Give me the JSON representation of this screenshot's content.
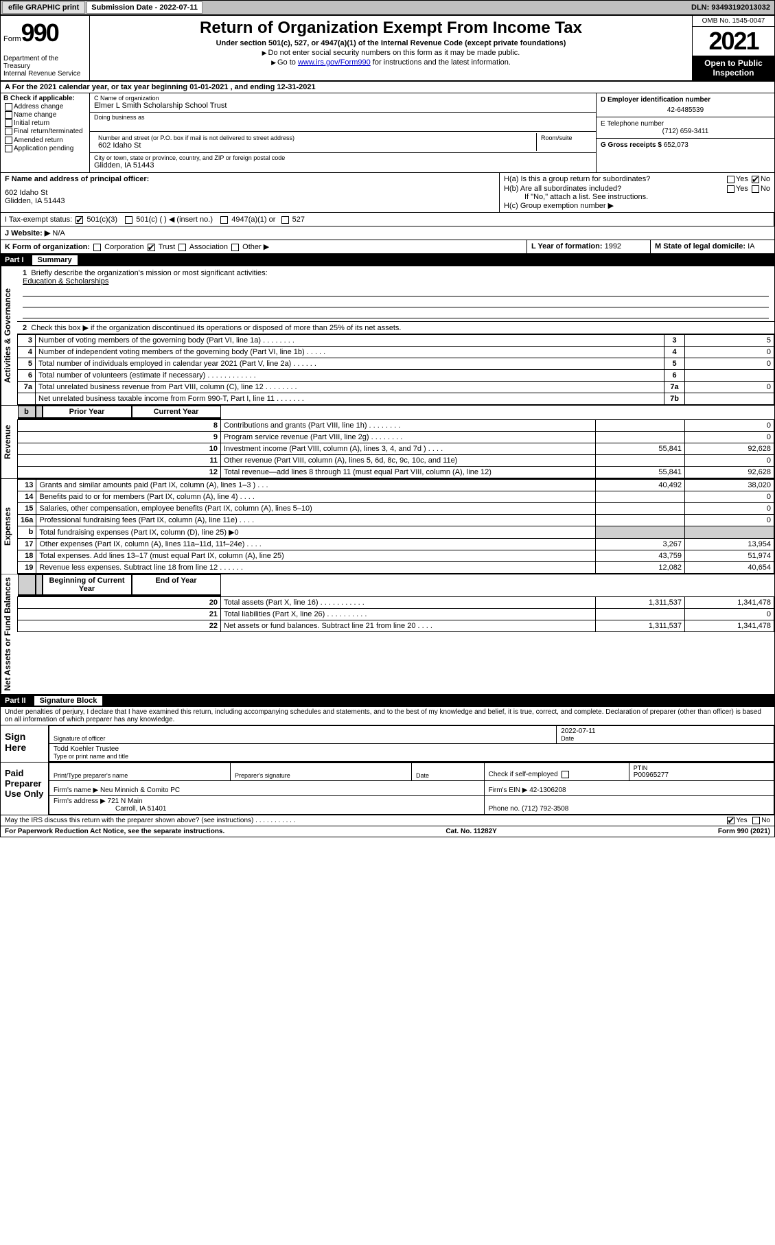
{
  "topbar": {
    "efile": "efile GRAPHIC print",
    "subdate_label": "Submission Date - 2022-07-11",
    "dln": "DLN: 93493192013032"
  },
  "header": {
    "form_word": "Form",
    "form_num": "990",
    "title": "Return of Organization Exempt From Income Tax",
    "subtitle": "Under section 501(c), 527, or 4947(a)(1) of the Internal Revenue Code (except private foundations)",
    "note1": "Do not enter social security numbers on this form as it may be made public.",
    "note2_pre": "Go to ",
    "note2_link": "www.irs.gov/Form990",
    "note2_post": " for instructions and the latest information.",
    "dept": "Department of the Treasury",
    "irs": "Internal Revenue Service",
    "omb": "OMB No. 1545-0047",
    "year": "2021",
    "inspect": "Open to Public Inspection"
  },
  "rowA": "A For the 2021 calendar year, or tax year beginning 01-01-2021   , and ending 12-31-2021",
  "colB": {
    "label": "B Check if applicable:",
    "opts": [
      "Address change",
      "Name change",
      "Initial return",
      "Final return/terminated",
      "Amended return",
      "Application pending"
    ]
  },
  "colC": {
    "name_lbl": "C Name of organization",
    "name": "Elmer L Smith Scholarship School Trust",
    "dba_lbl": "Doing business as",
    "dba": "",
    "addr_lbl": "Number and street (or P.O. box if mail is not delivered to street address)",
    "room_lbl": "Room/suite",
    "addr": "602 Idaho St",
    "city_lbl": "City or town, state or province, country, and ZIP or foreign postal code",
    "city": "Glidden, IA  51443"
  },
  "colD": {
    "ein_lbl": "D Employer identification number",
    "ein": "42-6485539",
    "phone_lbl": "E Telephone number",
    "phone": "(712) 659-3411",
    "gross_lbl": "G Gross receipts $",
    "gross": "652,073"
  },
  "rowF": {
    "lbl": "F  Name and address of principal officer:",
    "addr1": "602 Idaho St",
    "addr2": "Glidden, IA  51443"
  },
  "rowH": {
    "ha": "H(a)  Is this a group return for subordinates?",
    "hb": "H(b)  Are all subordinates included?",
    "hb_note": "If \"No,\" attach a list. See instructions.",
    "hc": "H(c)  Group exemption number ▶",
    "yes": "Yes",
    "no": "No"
  },
  "rowI": {
    "lbl": "I   Tax-exempt status:",
    "o1": "501(c)(3)",
    "o2": "501(c) (   ) ◀ (insert no.)",
    "o3": "4947(a)(1) or",
    "o4": "527"
  },
  "rowJ": {
    "lbl": "J  Website: ▶",
    "val": "N/A"
  },
  "rowK": {
    "lbl": "K Form of organization:",
    "o1": "Corporation",
    "o2": "Trust",
    "o3": "Association",
    "o4": "Other ▶"
  },
  "rowL": {
    "lbl": "L Year of formation:",
    "val": "1992"
  },
  "rowM": {
    "lbl": "M State of legal domicile:",
    "val": "IA"
  },
  "part1": {
    "num": "Part I",
    "title": "Summary"
  },
  "summary": {
    "q1": "Briefly describe the organization's mission or most significant activities:",
    "mission": "Education & Scholarships",
    "q2": "Check this box ▶       if the organization discontinued its operations or disposed of more than 25% of its net assets.",
    "lines_gov": [
      {
        "n": "3",
        "d": "Number of voting members of the governing body (Part VI, line 1a)   .   .   .   .   .   .   .   .",
        "b": "3",
        "v": "5"
      },
      {
        "n": "4",
        "d": "Number of independent voting members of the governing body (Part VI, line 1b)  .   .   .   .   .",
        "b": "4",
        "v": "0"
      },
      {
        "n": "5",
        "d": "Total number of individuals employed in calendar year 2021 (Part V, line 2a)  .   .   .   .   .   .",
        "b": "5",
        "v": "0"
      },
      {
        "n": "6",
        "d": "Total number of volunteers (estimate if necessary)  .   .   .   .   .   .   .   .   .   .   .   .",
        "b": "6",
        "v": ""
      },
      {
        "n": "7a",
        "d": "Total unrelated business revenue from Part VIII, column (C), line 12  .   .   .   .   .   .   .   .",
        "b": "7a",
        "v": "0"
      },
      {
        "n": "",
        "d": "Net unrelated business taxable income from Form 990-T, Part I, line 11  .   .   .   .   .   .   .",
        "b": "7b",
        "v": ""
      }
    ],
    "col_prior": "Prior Year",
    "col_current": "Current Year",
    "lines_rev": [
      {
        "n": "8",
        "d": "Contributions and grants (Part VIII, line 1h)   .   .   .   .   .   .   .   .",
        "p": "",
        "c": "0"
      },
      {
        "n": "9",
        "d": "Program service revenue (Part VIII, line 2g)   .   .   .   .   .   .   .   .",
        "p": "",
        "c": "0"
      },
      {
        "n": "10",
        "d": "Investment income (Part VIII, column (A), lines 3, 4, and 7d )  .   .   .   .",
        "p": "55,841",
        "c": "92,628"
      },
      {
        "n": "11",
        "d": "Other revenue (Part VIII, column (A), lines 5, 6d, 8c, 9c, 10c, and 11e)",
        "p": "",
        "c": "0"
      },
      {
        "n": "12",
        "d": "Total revenue—add lines 8 through 11 (must equal Part VIII, column (A), line 12)",
        "p": "55,841",
        "c": "92,628"
      }
    ],
    "lines_exp": [
      {
        "n": "13",
        "d": "Grants and similar amounts paid (Part IX, column (A), lines 1–3 )  .   .   .",
        "p": "40,492",
        "c": "38,020"
      },
      {
        "n": "14",
        "d": "Benefits paid to or for members (Part IX, column (A), line 4)  .   .   .   .",
        "p": "",
        "c": "0"
      },
      {
        "n": "15",
        "d": "Salaries, other compensation, employee benefits (Part IX, column (A), lines 5–10)",
        "p": "",
        "c": "0"
      },
      {
        "n": "16a",
        "d": "Professional fundraising fees (Part IX, column (A), line 11e)  .   .   .   .",
        "p": "",
        "c": "0"
      },
      {
        "n": "b",
        "d": "Total fundraising expenses (Part IX, column (D), line 25) ▶0",
        "p": "",
        "c": "",
        "shade": true
      },
      {
        "n": "17",
        "d": "Other expenses (Part IX, column (A), lines 11a–11d, 11f–24e)  .   .   .   .",
        "p": "3,267",
        "c": "13,954"
      },
      {
        "n": "18",
        "d": "Total expenses. Add lines 13–17 (must equal Part IX, column (A), line 25)",
        "p": "43,759",
        "c": "51,974"
      },
      {
        "n": "19",
        "d": "Revenue less expenses. Subtract line 18 from line 12  .   .   .   .   .   .",
        "p": "12,082",
        "c": "40,654"
      }
    ],
    "col_begin": "Beginning of Current Year",
    "col_end": "End of Year",
    "lines_net": [
      {
        "n": "20",
        "d": "Total assets (Part X, line 16)  .   .   .   .   .   .   .   .   .   .   .",
        "p": "1,311,537",
        "c": "1,341,478"
      },
      {
        "n": "21",
        "d": "Total liabilities (Part X, line 26)  .   .   .   .   .   .   .   .   .   .",
        "p": "",
        "c": "0"
      },
      {
        "n": "22",
        "d": "Net assets or fund balances. Subtract line 21 from line 20  .   .   .   .",
        "p": "1,311,537",
        "c": "1,341,478"
      }
    ]
  },
  "part2": {
    "num": "Part II",
    "title": "Signature Block"
  },
  "sig": {
    "perjury": "Under penalties of perjury, I declare that I have examined this return, including accompanying schedules and statements, and to the best of my knowledge and belief, it is true, correct, and complete. Declaration of preparer (other than officer) is based on all information of which preparer has any knowledge.",
    "sign_here": "Sign Here",
    "sig_officer": "Signature of officer",
    "date_lbl": "Date",
    "date": "2022-07-11",
    "name_title": "Todd Koehler  Trustee",
    "name_title_lbl": "Type or print name and title",
    "paid": "Paid Preparer Use Only",
    "p_name_lbl": "Print/Type preparer's name",
    "p_sig_lbl": "Preparer's signature",
    "p_date_lbl": "Date",
    "check_self": "Check        if self-employed",
    "ptin_lbl": "PTIN",
    "ptin": "P00965277",
    "firm_name_lbl": "Firm's name     ▶",
    "firm_name": "Neu Minnich & Comito PC",
    "firm_ein_lbl": "Firm's EIN ▶",
    "firm_ein": "42-1306208",
    "firm_addr_lbl": "Firm's address ▶",
    "firm_addr1": "721 N Main",
    "firm_addr2": "Carroll, IA  51401",
    "firm_phone_lbl": "Phone no.",
    "firm_phone": "(712) 792-3508",
    "may_irs": "May the IRS discuss this return with the preparer shown above? (see instructions)   .   .   .   .   .   .   .   .   .   .   ."
  },
  "footer": {
    "pra": "For Paperwork Reduction Act Notice, see the separate instructions.",
    "cat": "Cat. No. 11282Y",
    "form": "Form 990 (2021)"
  },
  "side_labels": {
    "gov": "Activities & Governance",
    "rev": "Revenue",
    "exp": "Expenses",
    "net": "Net Assets or Fund Balances"
  }
}
